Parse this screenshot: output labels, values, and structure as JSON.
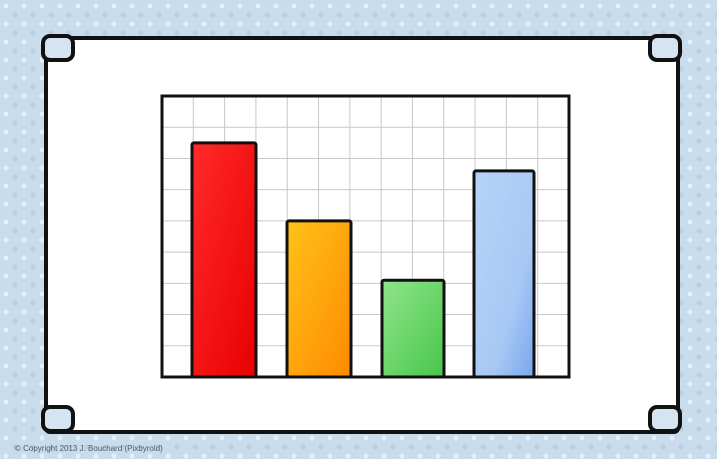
{
  "chart_data": {
    "type": "bar",
    "categories": [
      "",
      "",
      "",
      ""
    ],
    "values": [
      7.5,
      5,
      3.1,
      6.6
    ],
    "colors": [
      "#ff1010",
      "#ffae16",
      "#6dd56b",
      "#9cc1f2"
    ],
    "title": "",
    "xlabel": "",
    "ylabel": "",
    "ylim": [
      0,
      9
    ],
    "grid": true,
    "legend": "none"
  },
  "footer": {
    "copyright": "© Copyright 2013 J. Bouchard (Pixbyrold)"
  },
  "colors": {
    "background": "#c9dcec",
    "frame": "#ffffff",
    "outline": "#111111",
    "grid": "#c8c8c8"
  }
}
